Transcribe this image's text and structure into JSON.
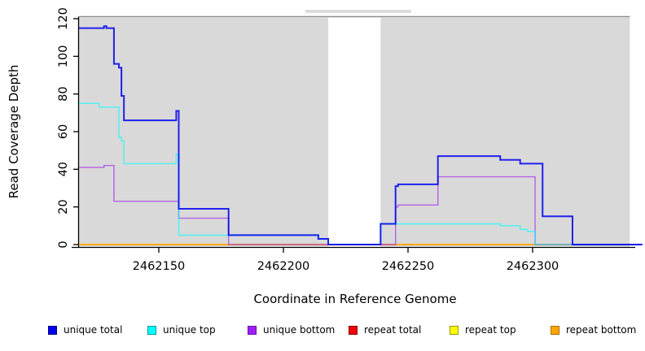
{
  "figure": {
    "xlabel": "Coordinate in Reference Genome",
    "ylabel": "Read Coverage Depth"
  },
  "chart_data": {
    "type": "line",
    "subtype": "step-coverage",
    "title": "",
    "xlabel": "Coordinate in Reference Genome",
    "ylabel": "Read Coverage Depth",
    "xlim": [
      2462116,
      2462344
    ],
    "ylim": [
      0,
      120
    ],
    "xticks": [
      2462150,
      2462200,
      2462250,
      2462300
    ],
    "yticks": [
      0,
      20,
      40,
      60,
      80,
      100,
      120
    ],
    "x_end": 2462344,
    "background": {
      "shaded_color": "#d9d9d9",
      "shaded_regions": [
        [
          2462118,
          2462218
        ],
        [
          2462239,
          2462339
        ]
      ],
      "unshaded_gap": [
        2462218,
        2462239
      ]
    },
    "series": [
      {
        "name": "unique total",
        "color": "#0000ee",
        "opacity": 0.85,
        "width": 2,
        "steps": [
          [
            2462118,
            115
          ],
          [
            2462128,
            116
          ],
          [
            2462129,
            115
          ],
          [
            2462132,
            96
          ],
          [
            2462134,
            94
          ],
          [
            2462135,
            79
          ],
          [
            2462136,
            66
          ],
          [
            2462157,
            71
          ],
          [
            2462158,
            19
          ],
          [
            2462178,
            5
          ],
          [
            2462214,
            3
          ],
          [
            2462218,
            0
          ],
          [
            2462239,
            11
          ],
          [
            2462245,
            31
          ],
          [
            2462246,
            32
          ],
          [
            2462262,
            47
          ],
          [
            2462287,
            45
          ],
          [
            2462295,
            43
          ],
          [
            2462304,
            15
          ],
          [
            2462316,
            0
          ]
        ]
      },
      {
        "name": "unique top",
        "color": "#00ffff",
        "opacity": 0.6,
        "width": 1.6,
        "steps": [
          [
            2462118,
            75
          ],
          [
            2462126,
            73
          ],
          [
            2462134,
            57
          ],
          [
            2462135,
            55
          ],
          [
            2462136,
            43
          ],
          [
            2462157,
            48
          ],
          [
            2462158,
            5
          ],
          [
            2462214,
            3
          ],
          [
            2462218,
            0
          ],
          [
            2462239,
            11
          ],
          [
            2462287,
            10
          ],
          [
            2462295,
            8
          ],
          [
            2462298,
            7
          ],
          [
            2462301,
            0
          ]
        ]
      },
      {
        "name": "unique bottom",
        "color": "#a020f0",
        "opacity": 0.65,
        "width": 1.4,
        "steps": [
          [
            2462118,
            41
          ],
          [
            2462128,
            42
          ],
          [
            2462132,
            23
          ],
          [
            2462158,
            14
          ],
          [
            2462178,
            0
          ],
          [
            2462245,
            20
          ],
          [
            2462246,
            21
          ],
          [
            2462262,
            36
          ],
          [
            2462301,
            0
          ]
        ]
      },
      {
        "name": "repeat total",
        "color": "#ee0000",
        "opacity": 0.9,
        "width": 1.2,
        "steps": [
          [
            2462118,
            0
          ]
        ]
      },
      {
        "name": "repeat top",
        "color": "#ffff00",
        "opacity": 0.95,
        "width": 1.2,
        "steps": [
          [
            2462118,
            0
          ]
        ]
      },
      {
        "name": "repeat bottom",
        "color": "#ffa500",
        "opacity": 1,
        "width": 1.7,
        "steps": [
          [
            2462118,
            0
          ]
        ]
      }
    ],
    "draw_order": [
      "repeat total",
      "repeat top",
      "repeat bottom",
      "unique bottom",
      "unique top",
      "unique total"
    ],
    "legend": [
      "unique total",
      "unique top",
      "unique bottom",
      "repeat total",
      "repeat top",
      "repeat bottom"
    ],
    "legend_position": "bottom"
  }
}
